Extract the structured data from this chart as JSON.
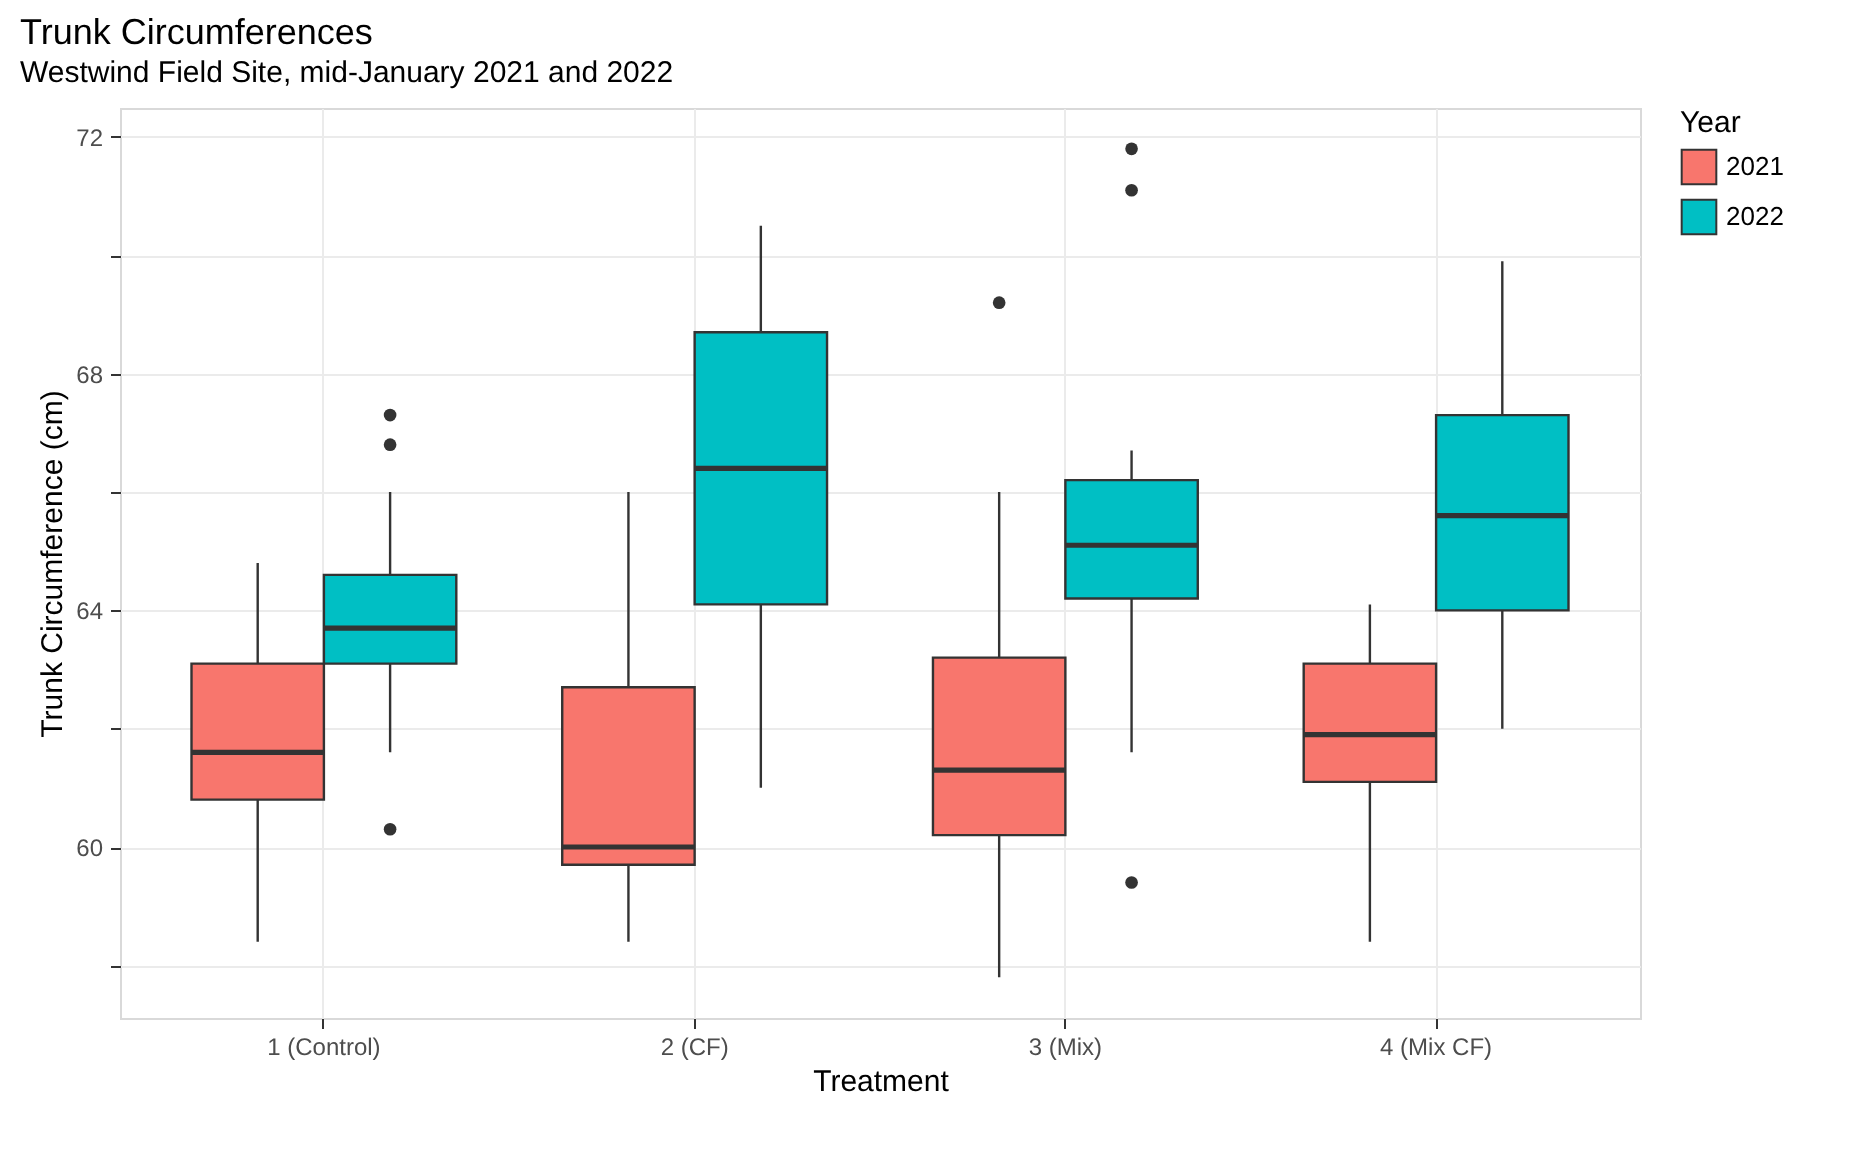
{
  "chart_data": {
    "type": "box",
    "title": "Trunk Circumferences",
    "subtitle": "Westwind Field Site, mid-January 2021 and 2022",
    "xlabel": "Treatment",
    "ylabel": "Trunk Circumference (cm)",
    "legend_title": "Year",
    "categories": [
      "1 (Control)",
      "2 (CF)",
      "3 (Mix)",
      "4 (Mix CF)"
    ],
    "series": [
      {
        "name": "2021",
        "color": "#f8766d",
        "boxes": [
          {
            "low": 58.4,
            "q1": 60.8,
            "median": 61.6,
            "q3": 63.1,
            "high": 64.8
          },
          {
            "low": 58.4,
            "q1": 59.7,
            "median": 60.0,
            "q3": 62.7,
            "high": 66.0
          },
          {
            "low": 57.8,
            "q1": 60.2,
            "median": 61.3,
            "q3": 63.2,
            "high": 66.0,
            "outliers": [
              69.2
            ]
          },
          {
            "low": 58.4,
            "q1": 61.1,
            "median": 61.9,
            "q3": 63.1,
            "high": 64.1
          }
        ]
      },
      {
        "name": "2022",
        "color": "#00bfc4",
        "boxes": [
          {
            "low": 61.6,
            "q1": 63.1,
            "median": 63.7,
            "q3": 64.6,
            "high": 66.0,
            "outliers": [
              67.3,
              66.8,
              60.3
            ]
          },
          {
            "low": 61.0,
            "q1": 64.1,
            "median": 66.4,
            "q3": 68.7,
            "high": 70.5
          },
          {
            "low": 61.6,
            "q1": 64.2,
            "median": 65.1,
            "q3": 66.2,
            "high": 66.7,
            "outliers": [
              71.8,
              71.1,
              59.4
            ]
          },
          {
            "low": 62.0,
            "q1": 64.0,
            "median": 65.6,
            "q3": 67.3,
            "high": 69.9
          }
        ]
      }
    ],
    "ylim": [
      57.11,
      72.49
    ],
    "yticks": [
      {
        "value": 58,
        "label": null
      },
      60,
      {
        "value": 62,
        "label": null
      },
      64,
      {
        "value": 66,
        "label": null
      },
      68,
      {
        "value": 70,
        "label": null
      },
      72
    ],
    "grid": true,
    "legend": "right"
  }
}
